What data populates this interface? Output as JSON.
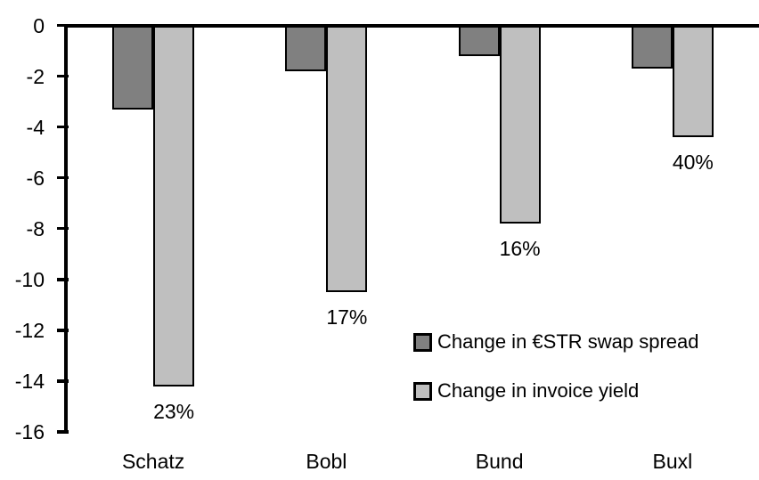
{
  "chart_data": {
    "type": "bar",
    "title": "",
    "xlabel": "",
    "ylabel": "",
    "categories": [
      "Schatz",
      "Bobl",
      "Bund",
      "Buxl"
    ],
    "series": [
      {
        "name": "Change in €STR swap spread",
        "color": "#808080",
        "values": [
          -3.3,
          -1.8,
          -1.2,
          -1.7
        ]
      },
      {
        "name": "Change in invoice yield",
        "color": "#bfbfbf",
        "values": [
          -14.2,
          -10.5,
          -7.8,
          -4.4
        ],
        "point_labels": [
          "23%",
          "17%",
          "16%",
          "40%"
        ]
      }
    ],
    "ylim": [
      -16,
      0
    ],
    "yticks": [
      0,
      -2,
      -4,
      -6,
      -8,
      -10,
      -12,
      -14,
      -16
    ],
    "ytick_labels": [
      "0",
      "-2",
      "-4",
      "-6",
      "-8",
      "-10",
      "-12",
      "-14",
      "-16"
    ],
    "grid": false,
    "legend_position": "inside-center-right",
    "colors": {
      "background": "#ffffff",
      "axis": "#000000",
      "bar_outline": "#000000",
      "swap_spread_series": "#808080",
      "invoice_yield_series": "#bfbfbf"
    }
  }
}
